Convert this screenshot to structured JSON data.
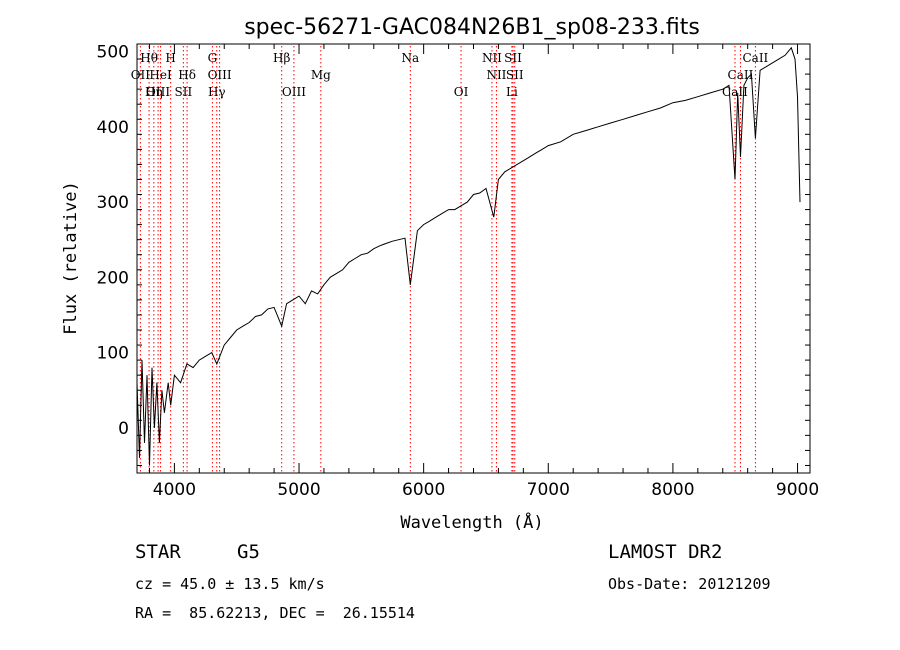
{
  "chart_data": {
    "type": "line",
    "title": "spec-56271-GAC084N26B1_sp08-233.fits",
    "xlabel": "Wavelength (Å)",
    "ylabel": "Flux (relative)",
    "xlim": [
      3700,
      9100
    ],
    "ylim": [
      -60,
      510
    ],
    "xticks": [
      4000,
      5000,
      6000,
      7000,
      8000,
      9000
    ],
    "yticks": [
      0,
      100,
      200,
      300,
      400,
      500
    ],
    "grid": false,
    "line_color": "#000000",
    "marker_line_color": "#ff0000",
    "spectrum": {
      "x": [
        3700,
        3720,
        3740,
        3760,
        3780,
        3800,
        3820,
        3840,
        3860,
        3880,
        3900,
        3920,
        3950,
        3970,
        4000,
        4050,
        4100,
        4150,
        4200,
        4250,
        4300,
        4340,
        4400,
        4450,
        4500,
        4550,
        4600,
        4650,
        4700,
        4750,
        4800,
        4861,
        4900,
        4950,
        5000,
        5050,
        5100,
        5150,
        5200,
        5250,
        5300,
        5350,
        5400,
        5450,
        5500,
        5550,
        5600,
        5650,
        5700,
        5750,
        5800,
        5850,
        5893,
        5950,
        6000,
        6050,
        6100,
        6150,
        6200,
        6250,
        6300,
        6350,
        6400,
        6450,
        6500,
        6563,
        6600,
        6650,
        6700,
        6750,
        6800,
        6850,
        6900,
        6950,
        7000,
        7100,
        7200,
        7300,
        7400,
        7500,
        7600,
        7700,
        7800,
        7900,
        8000,
        8100,
        8200,
        8300,
        8400,
        8450,
        8498,
        8520,
        8542,
        8570,
        8600,
        8630,
        8662,
        8700,
        8750,
        8800,
        8850,
        8900,
        8950,
        8980,
        9000,
        9020
      ],
      "y": [
        60,
        -40,
        90,
        -20,
        70,
        -50,
        80,
        0,
        60,
        -20,
        50,
        20,
        60,
        30,
        70,
        60,
        85,
        80,
        90,
        95,
        100,
        85,
        110,
        120,
        130,
        135,
        140,
        148,
        150,
        158,
        160,
        135,
        165,
        170,
        175,
        165,
        182,
        178,
        190,
        200,
        205,
        210,
        220,
        225,
        230,
        232,
        238,
        242,
        245,
        248,
        250,
        252,
        190,
        262,
        270,
        275,
        280,
        285,
        290,
        290,
        295,
        300,
        310,
        312,
        318,
        280,
        330,
        340,
        345,
        350,
        355,
        360,
        365,
        370,
        375,
        380,
        390,
        395,
        400,
        405,
        410,
        415,
        420,
        425,
        432,
        435,
        440,
        445,
        450,
        455,
        330,
        445,
        360,
        455,
        465,
        470,
        385,
        475,
        480,
        485,
        490,
        495,
        505,
        490,
        440,
        300
      ]
    },
    "lines": [
      {
        "label": "Hθ",
        "x": 3797,
        "row": 1
      },
      {
        "label": "H",
        "x": 3970,
        "row": 1
      },
      {
        "label": "G",
        "x": 4305,
        "row": 1
      },
      {
        "label": "Hβ",
        "x": 4861,
        "row": 1
      },
      {
        "label": "Na",
        "x": 5893,
        "row": 1
      },
      {
        "label": "NII",
        "x": 6548,
        "row": 1
      },
      {
        "label": "SII",
        "x": 6717,
        "row": 1
      },
      {
        "label": "CaII",
        "x": 8662,
        "row": 1
      },
      {
        "label": "OII",
        "x": 3727,
        "row": 2
      },
      {
        "label": "HeI",
        "x": 3889,
        "row": 2
      },
      {
        "label": "Hδ",
        "x": 4102,
        "row": 2
      },
      {
        "label": "OIII",
        "x": 4363,
        "row": 2
      },
      {
        "label": "Mg",
        "x": 5175,
        "row": 2
      },
      {
        "label": "NII",
        "x": 6584,
        "row": 2
      },
      {
        "label": "SII",
        "x": 6731,
        "row": 2
      },
      {
        "label": "CaII",
        "x": 8542,
        "row": 2
      },
      {
        "label": "OIII",
        "x": 3869,
        "row": 3
      },
      {
        "label": "Hη",
        "x": 3835,
        "row": 3
      },
      {
        "label": "SII",
        "x": 4072,
        "row": 3
      },
      {
        "label": "Hγ",
        "x": 4340,
        "row": 3
      },
      {
        "label": "OIII",
        "x": 4959,
        "row": 3
      },
      {
        "label": "OI",
        "x": 6300,
        "row": 3
      },
      {
        "label": "Li",
        "x": 6708,
        "row": 3
      },
      {
        "label": "CaII",
        "x": 8498,
        "row": 3
      }
    ]
  },
  "info": {
    "object_class": "STAR",
    "subclass": "G5",
    "survey": "LAMOST DR2",
    "cz": "cz = 45.0 ± 13.5 km/s",
    "obs_date": "Obs-Date: 20121209",
    "radec": "RA =  85.62213, DEC =  26.15514"
  }
}
